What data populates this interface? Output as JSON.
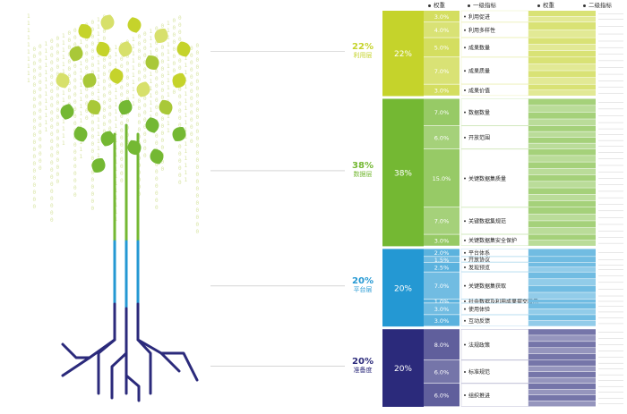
{
  "headers": {
    "weight": "权重",
    "level1": "一级指标",
    "weight2": "权重",
    "level2": "二级指标"
  },
  "colors": {
    "utilization": "#c5d32b",
    "data": "#74b833",
    "platform": "#2498d3",
    "environment": "#2b2a7b"
  },
  "chart_data": {
    "type": "table",
    "layers": [
      {
        "name": "利用层",
        "weight": "22%",
        "color_key": "utilization",
        "indicators": [
          {
            "weight": "3.0%",
            "name": "利用促进"
          },
          {
            "weight": "4.0%",
            "name": "利用多样性"
          },
          {
            "weight": "5.0%",
            "name": "成果数量"
          },
          {
            "weight": "7.0%",
            "name": "成果质量"
          },
          {
            "weight": "3.0%",
            "name": "成果价值"
          }
        ]
      },
      {
        "name": "数据层",
        "weight": "38%",
        "color_key": "data",
        "indicators": [
          {
            "weight": "7.0%",
            "name": "数据数量"
          },
          {
            "weight": "6.0%",
            "name": "开放范围"
          },
          {
            "weight": "15.0%",
            "name": "关键数据集质量"
          },
          {
            "weight": "7.0%",
            "name": "关键数据集规范"
          },
          {
            "weight": "3.0%",
            "name": "关键数据集安全保护"
          }
        ]
      },
      {
        "name": "平台层",
        "weight": "20%",
        "color_key": "platform",
        "indicators": [
          {
            "weight": "2.0%",
            "name": "平台体系"
          },
          {
            "weight": "1.5%",
            "name": "开放协议"
          },
          {
            "weight": "2.5%",
            "name": "发现预览"
          },
          {
            "weight": "7.0%",
            "name": "关键数据集获取"
          },
          {
            "weight": "1.0%",
            "name": "社会数据及利用成果提交展示"
          },
          {
            "weight": "3.0%",
            "name": "使用体验"
          },
          {
            "weight": "3.0%",
            "name": "互动反馈"
          }
        ]
      },
      {
        "name": "准备度",
        "weight": "20%",
        "color_key": "environment",
        "indicators": [
          {
            "weight": "8.0%",
            "name": "法规政策"
          },
          {
            "weight": "6.0%",
            "name": "标准规范"
          },
          {
            "weight": "6.0%",
            "name": "组织推进"
          }
        ]
      }
    ]
  }
}
